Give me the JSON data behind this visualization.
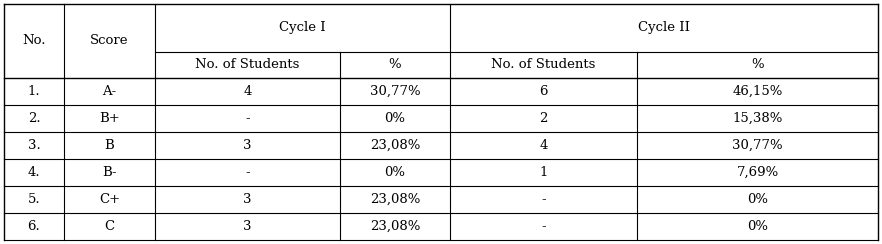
{
  "col_headers_row1": [
    "No.",
    "Score",
    "Cycle I",
    "Cycle II"
  ],
  "col_headers_row2": [
    "No. of Students",
    "%",
    "No. of Students",
    "%"
  ],
  "rows": [
    [
      "1.",
      "A-",
      "4",
      "30,77%",
      "6",
      "46,15%"
    ],
    [
      "2.",
      "B+",
      "-",
      "0%",
      "2",
      "15,38%"
    ],
    [
      "3.",
      "B",
      "3",
      "23,08%",
      "4",
      "30,77%"
    ],
    [
      "4.",
      "B-",
      "-",
      "0%",
      "1",
      "7,69%"
    ],
    [
      "5.",
      "C+",
      "3",
      "23,08%",
      "-",
      "0%"
    ],
    [
      "6.",
      "C",
      "3",
      "23,08%",
      "-",
      "0%"
    ]
  ],
  "bg_color": "#ffffff",
  "text_color": "#000000",
  "line_color": "#000000",
  "font_size": 9.5
}
